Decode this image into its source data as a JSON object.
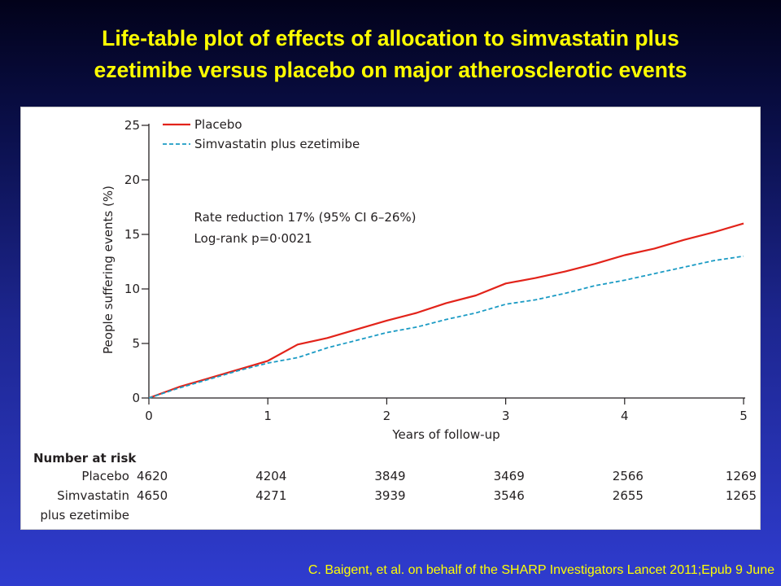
{
  "slide": {
    "title_lines": [
      "Life-table plot of effects of allocation to simvastatin plus",
      "ezetimibe versus placebo on major atherosclerotic events"
    ],
    "citation": "C. Baigent, et al. on behalf of the SHARP Investigators Lancet 2011;Epub 9 June"
  },
  "chart_data": {
    "type": "line",
    "title": "",
    "xlabel": "Years of follow-up",
    "ylabel": "People suffering events (%)",
    "xlim": [
      0,
      5
    ],
    "ylim": [
      0,
      25
    ],
    "x_ticks": [
      0,
      1,
      2,
      3,
      4,
      5
    ],
    "y_ticks": [
      0,
      5,
      10,
      15,
      20,
      25
    ],
    "legend_position": "top-left",
    "grid": false,
    "series": [
      {
        "name": "Placebo",
        "color": "#e2231a",
        "line_style": "solid",
        "x": [
          0,
          0.25,
          0.5,
          0.75,
          1,
          1.25,
          1.5,
          1.75,
          2,
          2.25,
          2.5,
          2.75,
          3,
          3.25,
          3.5,
          3.75,
          4,
          4.25,
          4.5,
          4.75,
          5
        ],
        "y": [
          0,
          1.0,
          1.8,
          2.6,
          3.4,
          4.9,
          5.5,
          6.3,
          7.1,
          7.8,
          8.7,
          9.4,
          10.5,
          11.0,
          11.6,
          12.3,
          13.1,
          13.7,
          14.5,
          15.2,
          16.0
        ]
      },
      {
        "name": "Simvastatin plus ezetimibe",
        "color": "#1b9bc4",
        "line_style": "dashed",
        "x": [
          0,
          0.25,
          0.5,
          0.75,
          1,
          1.25,
          1.5,
          1.75,
          2,
          2.25,
          2.5,
          2.75,
          3,
          3.25,
          3.5,
          3.75,
          4,
          4.25,
          4.5,
          4.75,
          5
        ],
        "y": [
          0,
          0.9,
          1.7,
          2.5,
          3.2,
          3.7,
          4.6,
          5.3,
          6.0,
          6.5,
          7.2,
          7.8,
          8.6,
          9.0,
          9.6,
          10.3,
          10.8,
          11.4,
          12.0,
          12.6,
          13.0
        ]
      }
    ],
    "annotation": {
      "lines": [
        "Rate reduction 17% (95% CI 6–26%)",
        "Log-rank p=0·0021"
      ],
      "x": 0.38,
      "y": 16.2
    },
    "number_at_risk": {
      "header": "Number at risk",
      "rows": [
        {
          "label_lines": [
            "Placebo"
          ],
          "values": [
            "4620",
            "4204",
            "3849",
            "3469",
            "2566",
            "1269"
          ]
        },
        {
          "label_lines": [
            "Simvastatin",
            "plus ezetimibe"
          ],
          "values": [
            "4650",
            "4271",
            "3939",
            "3546",
            "2655",
            "1265"
          ]
        }
      ]
    }
  }
}
